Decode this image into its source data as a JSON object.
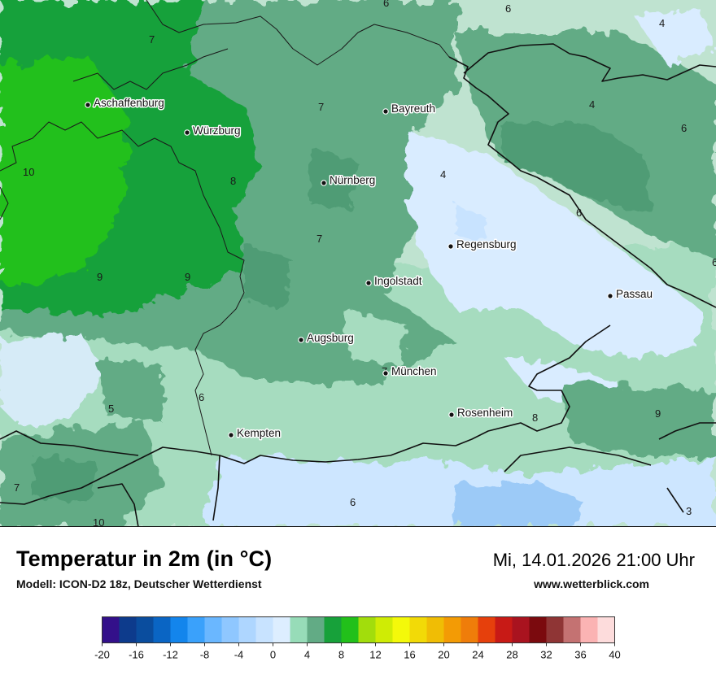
{
  "title": "Temperatur in 2m (in °C)",
  "model": "Modell: ICON-D2 18z, Deutscher Wetterdienst",
  "datetime": "Mi, 14.01.2026 21:00 Uhr",
  "website": "www.wetterblick.com",
  "cities": [
    {
      "name": "Aschaffenburg",
      "label": "Aschaffenburg"
    },
    {
      "name": "Würzburg",
      "label": "Würzburg"
    },
    {
      "name": "Bayreuth",
      "label": "Bayreuth"
    },
    {
      "name": "Nürnberg",
      "label": "Nürnberg"
    },
    {
      "name": "Regensburg",
      "label": "Regensburg"
    },
    {
      "name": "Ingolstadt",
      "label": "Ingolstadt"
    },
    {
      "name": "Passau",
      "label": "Passau"
    },
    {
      "name": "Augsburg",
      "label": "Augsburg"
    },
    {
      "name": "München",
      "label": "München"
    },
    {
      "name": "Rosenheim",
      "label": "Rosenheim"
    },
    {
      "name": "Kempten",
      "label": "Kempten"
    }
  ],
  "isotherm_labels": [
    "6",
    "6",
    "4",
    "7",
    "7",
    "4",
    "6",
    "10",
    "8",
    "4",
    "6",
    "7",
    "9",
    "9",
    "6",
    "5",
    "6",
    "7",
    "8",
    "9",
    "7",
    "10",
    "6",
    "3"
  ],
  "legend": {
    "ticks": [
      "-20",
      "-16",
      "-12",
      "-8",
      "-4",
      "0",
      "4",
      "8",
      "12",
      "16",
      "20",
      "24",
      "28",
      "32",
      "36",
      "40"
    ],
    "colors": [
      "#33108a",
      "#0d3b8c",
      "#0a4d9e",
      "#0a65c4",
      "#1385ec",
      "#3aa1fb",
      "#6ab7ff",
      "#8fc7ff",
      "#aed6ff",
      "#c8e3ff",
      "#ddeeff",
      "#97dcb8",
      "#62ab85",
      "#17a13a",
      "#22c01a",
      "#a2dd0c",
      "#cfec05",
      "#f4f90a",
      "#f2da07",
      "#f0bd05",
      "#f39b05",
      "#ef7d0a",
      "#e6400c",
      "#c81a16",
      "#a9131f",
      "#7b0a0e",
      "#8f3535",
      "#c47272",
      "#fbb3b3",
      "#fddcdc"
    ]
  }
}
